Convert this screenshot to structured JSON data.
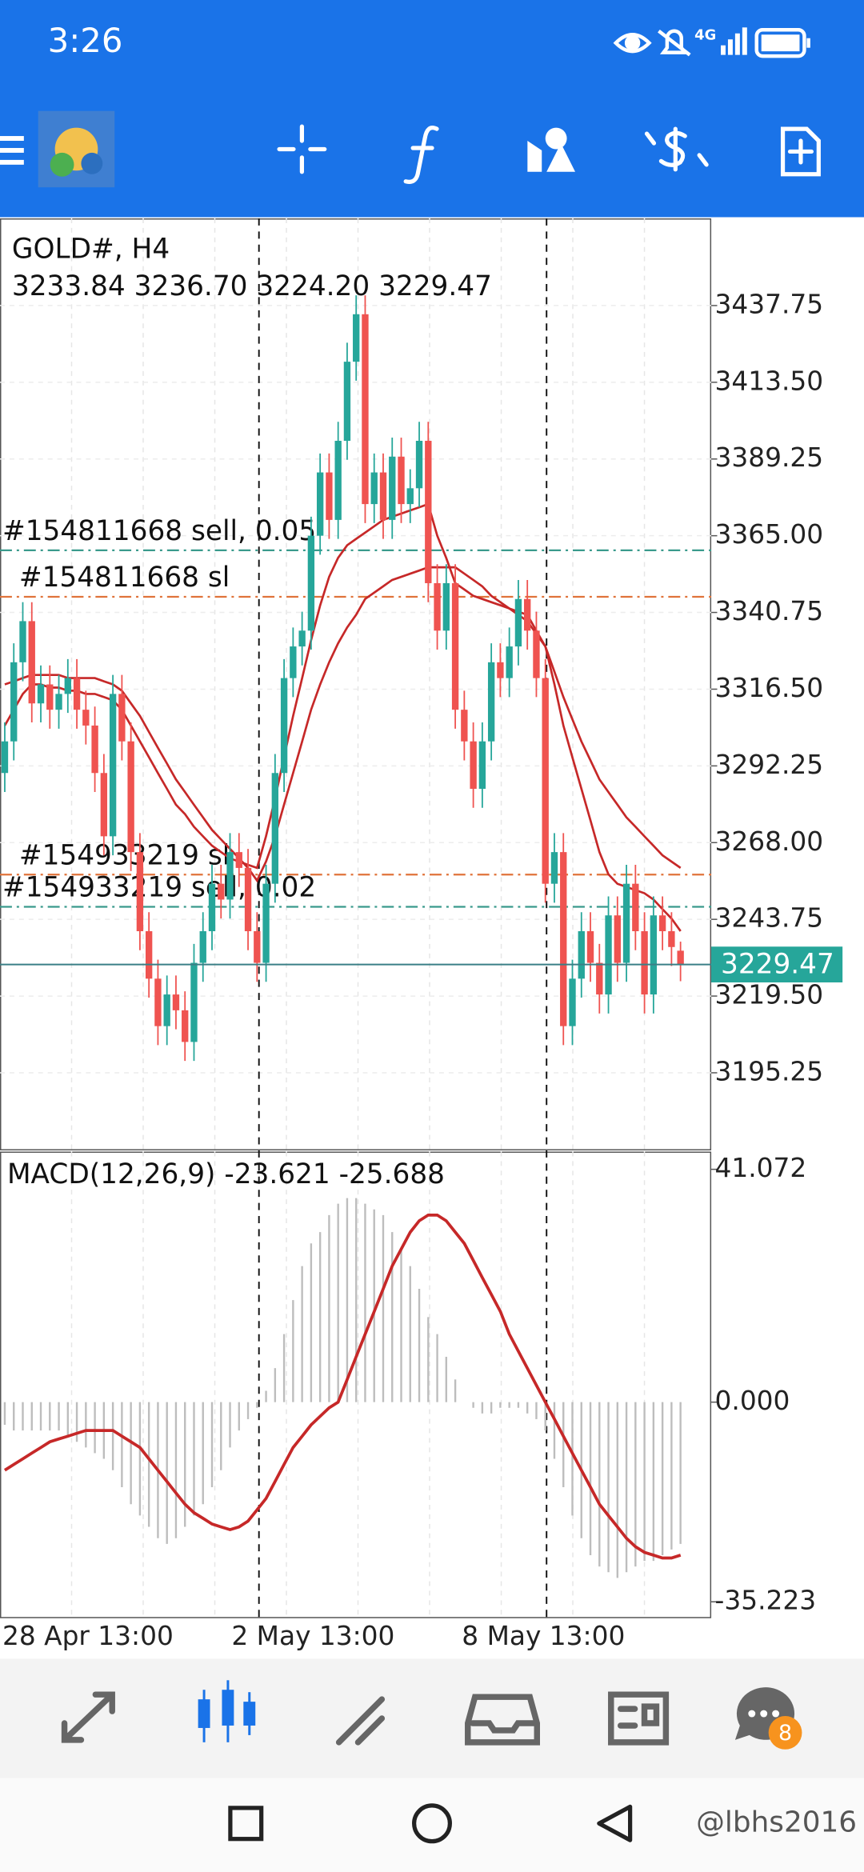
{
  "status_bar": {
    "time": "3:26",
    "network": "4G"
  },
  "chart_data": {
    "type": "candlestick",
    "symbol": "GOLD#, H4",
    "ohlc_text": "3233.84 3236.70 3224.20 3229.47",
    "up_color": "#26a69a",
    "down_color": "#ef5350",
    "grid": true,
    "ylim": [
      3171.1,
      3465.3
    ],
    "yticks": [
      3437.75,
      {
        "value": 3413.5,
        "label": "3413.50"
      },
      3389.25,
      {
        "value": 3365,
        "label": "3365.00"
      },
      3340.75,
      {
        "value": 3316.5,
        "label": "3316.50"
      },
      3292.25,
      {
        "value": 3268,
        "label": "3268.00"
      },
      3243.75,
      {
        "value": 3219.5,
        "label": "3219.50"
      },
      3195.25
    ],
    "date_labels": [
      "28 Apr 13:00",
      "2 May 13:00",
      "8 May 13:00"
    ],
    "open": [
      3290,
      3300,
      3325,
      3338,
      3312,
      3318,
      3310,
      3315,
      3320,
      3310,
      3305,
      3290,
      3270,
      3315,
      3300,
      3265,
      3240,
      3225,
      3210,
      3220,
      3215,
      3205,
      3230,
      3240,
      3255,
      3250,
      3265,
      3260,
      3240,
      3230,
      3255,
      3290,
      3320,
      3330,
      3335,
      3365,
      3385,
      3370,
      3395,
      3420,
      3435,
      3375,
      3385,
      3370,
      3390,
      3375,
      3380,
      3395,
      3350,
      3335,
      3350,
      3310,
      3300,
      3285,
      3300,
      3325,
      3320,
      3330,
      3345,
      3335,
      3320,
      3255,
      3265,
      3210,
      3225,
      3240,
      3230,
      3220,
      3245,
      3230,
      3255,
      3240,
      3220,
      3245,
      3240,
      3233.84
    ],
    "high": [
      3306,
      3331,
      3344,
      3344,
      3324,
      3324,
      3321,
      3326,
      3326,
      3316,
      3311,
      3296,
      3321,
      3321,
      3306,
      3271,
      3246,
      3231,
      3226,
      3226,
      3221,
      3236,
      3246,
      3261,
      3261,
      3271,
      3271,
      3266,
      3246,
      3261,
      3296,
      3326,
      3336,
      3341,
      3371,
      3391,
      3391,
      3401,
      3426,
      3441,
      3441,
      3391,
      3391,
      3396,
      3396,
      3386,
      3401,
      3401,
      3356,
      3356,
      3356,
      3316,
      3306,
      3306,
      3331,
      3331,
      3336,
      3351,
      3351,
      3341,
      3326,
      3271,
      3271,
      3231,
      3246,
      3246,
      3236,
      3251,
      3251,
      3261,
      3261,
      3246,
      3251,
      3251,
      3246,
      3236.7
    ],
    "low": [
      3284,
      3294,
      3319,
      3306,
      3306,
      3304,
      3304,
      3309,
      3304,
      3299,
      3284,
      3264,
      3264,
      3294,
      3259,
      3234,
      3219,
      3204,
      3204,
      3209,
      3199,
      3199,
      3224,
      3234,
      3244,
      3244,
      3254,
      3234,
      3224,
      3224,
      3249,
      3284,
      3314,
      3324,
      3329,
      3359,
      3364,
      3364,
      3389,
      3414,
      3369,
      3369,
      3364,
      3364,
      3369,
      3369,
      3374,
      3344,
      3329,
      3329,
      3304,
      3294,
      3279,
      3279,
      3294,
      3314,
      3314,
      3324,
      3329,
      3314,
      3249,
      3249,
      3204,
      3204,
      3219,
      3224,
      3214,
      3214,
      3224,
      3224,
      3234,
      3214,
      3214,
      3234,
      3229,
      3224.2
    ],
    "close": [
      3300,
      3325,
      3338,
      3312,
      3318,
      3310,
      3315,
      3320,
      3310,
      3305,
      3290,
      3270,
      3315,
      3300,
      3265,
      3240,
      3225,
      3210,
      3220,
      3215,
      3205,
      3230,
      3240,
      3255,
      3250,
      3265,
      3260,
      3240,
      3230,
      3255,
      3290,
      3320,
      3330,
      3335,
      3365,
      3385,
      3370,
      3395,
      3420,
      3435,
      3375,
      3385,
      3370,
      3390,
      3375,
      3380,
      3395,
      3350,
      3335,
      3350,
      3310,
      3300,
      3285,
      3300,
      3325,
      3320,
      3330,
      3345,
      3335,
      3320,
      3255,
      3265,
      3210,
      3225,
      3240,
      3230,
      3220,
      3245,
      3230,
      3255,
      3240,
      3220,
      3245,
      3240,
      3235,
      3229.47
    ],
    "ma": [
      {
        "color": "#c62828",
        "values": [
          3305,
          3310,
          3315,
          3318,
          3318,
          3317,
          3317,
          3316,
          3316,
          3315,
          3315,
          3314,
          3313,
          3310,
          3305,
          3300,
          3295,
          3290,
          3285,
          3280,
          3277,
          3273,
          3270,
          3267,
          3265,
          3263,
          3262,
          3261,
          3260,
          3270,
          3282,
          3295,
          3308,
          3320,
          3332,
          3343,
          3352,
          3358,
          3362,
          3364,
          3366,
          3368,
          3370,
          3371,
          3372,
          3373,
          3374,
          3375,
          3365,
          3358,
          3350,
          3348,
          3346,
          3345,
          3344,
          3343,
          3342,
          3341,
          3340,
          3335,
          3330,
          3318,
          3305,
          3295,
          3285,
          3275,
          3265,
          3258,
          3255,
          3254,
          3253,
          3252,
          3250,
          3247,
          3244,
          3240
        ]
      },
      {
        "color": "#c62828",
        "values": [
          3318,
          3319,
          3320,
          3321,
          3321,
          3321,
          3321,
          3320,
          3320,
          3320,
          3320,
          3319,
          3318,
          3316,
          3312,
          3308,
          3303,
          3298,
          3293,
          3288,
          3284,
          3280,
          3276,
          3272,
          3269,
          3266,
          3263,
          3260,
          3256,
          3262,
          3270,
          3280,
          3290,
          3300,
          3310,
          3318,
          3325,
          3331,
          3336,
          3340,
          3345,
          3347,
          3349,
          3351,
          3352,
          3353,
          3354,
          3355,
          3355,
          3355,
          3355,
          3353,
          3351,
          3349,
          3346,
          3344,
          3342,
          3340,
          3338,
          3334,
          3330,
          3322,
          3314,
          3307,
          3300,
          3294,
          3288,
          3284,
          3280,
          3276,
          3273,
          3270,
          3267,
          3264,
          3262,
          3260
        ]
      }
    ],
    "orders": [
      {
        "label": "#154811668 sell, 0.05",
        "price": 3360.4,
        "color": "#3a9a8c"
      },
      {
        "label": "#154811668 sl",
        "price": 3345.7,
        "color": "#e0733a"
      },
      {
        "label": "#154933219 sl",
        "price": 3257.9,
        "color": "#e0733a"
      },
      {
        "label": "#154933219 sell, 0.02",
        "price": 3247.7,
        "color": "#3a9a8c"
      }
    ],
    "price": {
      "value": 3229.47,
      "color": "#26a69a"
    },
    "macd": {
      "title": "MACD(12,26,9) -23.621 -25.688",
      "ylim": [
        -37.9,
        44.2
      ],
      "yticks": [
        41.072,
        {
          "value": 0,
          "label": "0.000"
        },
        -35.223
      ],
      "hist_color": "#bdbdbd",
      "signal_color": "#c62828",
      "histogram": [
        -4,
        -5,
        -5,
        -5,
        -5,
        -5,
        -5,
        -6,
        -7,
        -8,
        -9,
        -10,
        -12,
        -15,
        -18,
        -20,
        -22,
        -24,
        -25,
        -24,
        -22,
        -20,
        -18,
        -15,
        -12,
        -8,
        -5,
        -3,
        -1,
        2,
        6,
        12,
        18,
        24,
        28,
        30,
        33,
        35,
        36,
        36,
        35,
        34,
        33,
        30,
        27,
        24,
        20,
        15,
        12,
        8,
        4,
        0,
        -1,
        -2,
        -2,
        -1,
        -1,
        -1,
        -2,
        -3,
        -5,
        -10,
        -15,
        -20,
        -24,
        -27,
        -29,
        -30,
        -31,
        -30,
        -29,
        -28,
        -28,
        -27,
        -26,
        -25
      ],
      "signal": [
        -12,
        -11,
        -10,
        -9,
        -8,
        -7,
        -6.5,
        -6,
        -5.5,
        -5,
        -5,
        -5,
        -5,
        -6,
        -7,
        -8,
        -10,
        -12,
        -14,
        -16,
        -18,
        -19.5,
        -20.5,
        -21.5,
        -22,
        -22.5,
        -22,
        -21,
        -19,
        -17,
        -14,
        -11,
        -8,
        -6,
        -4,
        -2.5,
        -1,
        0,
        4,
        8,
        12,
        16,
        20,
        24,
        27,
        30,
        32,
        33,
        33,
        32,
        30,
        28,
        25,
        22,
        19,
        16,
        12,
        9,
        6,
        3,
        0,
        -3,
        -6,
        -9,
        -12,
        -15,
        -18,
        -20,
        -22,
        -24,
        -25.5,
        -26.5,
        -27,
        -27.5,
        -27.5,
        -27
      ]
    }
  },
  "nav_badge": "8",
  "watermark": "@lbhs2016"
}
